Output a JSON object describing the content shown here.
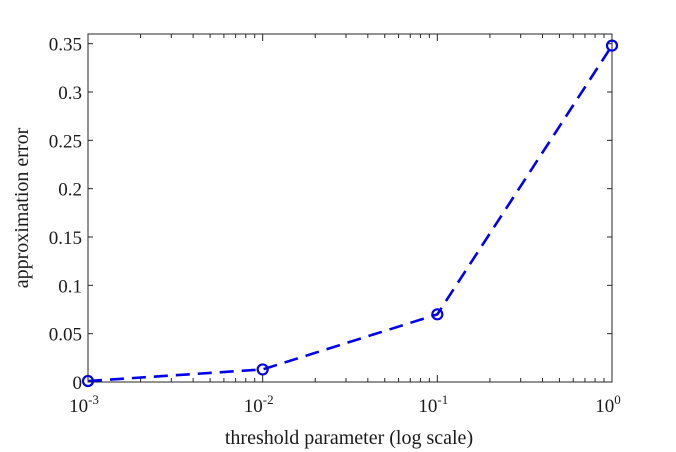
{
  "chart_data": {
    "type": "line",
    "xscale": "log",
    "xlabel": "threshold parameter (log scale)",
    "ylabel": "approximation error",
    "xlim": [
      0.001,
      1
    ],
    "ylim": [
      0,
      0.36
    ],
    "x_ticks": [
      {
        "value": 0.001,
        "base": "10",
        "exp": "-3"
      },
      {
        "value": 0.01,
        "base": "10",
        "exp": "-2"
      },
      {
        "value": 0.1,
        "base": "10",
        "exp": "-1"
      },
      {
        "value": 1,
        "base": "10",
        "exp": "0"
      }
    ],
    "y_ticks": [
      {
        "value": 0,
        "label": "0"
      },
      {
        "value": 0.05,
        "label": "0.05"
      },
      {
        "value": 0.1,
        "label": "0.1"
      },
      {
        "value": 0.15,
        "label": "0.15"
      },
      {
        "value": 0.2,
        "label": "0.2"
      },
      {
        "value": 0.25,
        "label": "0.25"
      },
      {
        "value": 0.3,
        "label": "0.3"
      },
      {
        "value": 0.35,
        "label": "0.35"
      }
    ],
    "grid": false,
    "series": [
      {
        "x": [
          0.001,
          0.01,
          0.1,
          1
        ],
        "y": [
          0.001,
          0.013,
          0.07,
          0.348
        ],
        "color": "#0000ee",
        "line_style": "dashed",
        "marker": "circle-open"
      }
    ]
  }
}
